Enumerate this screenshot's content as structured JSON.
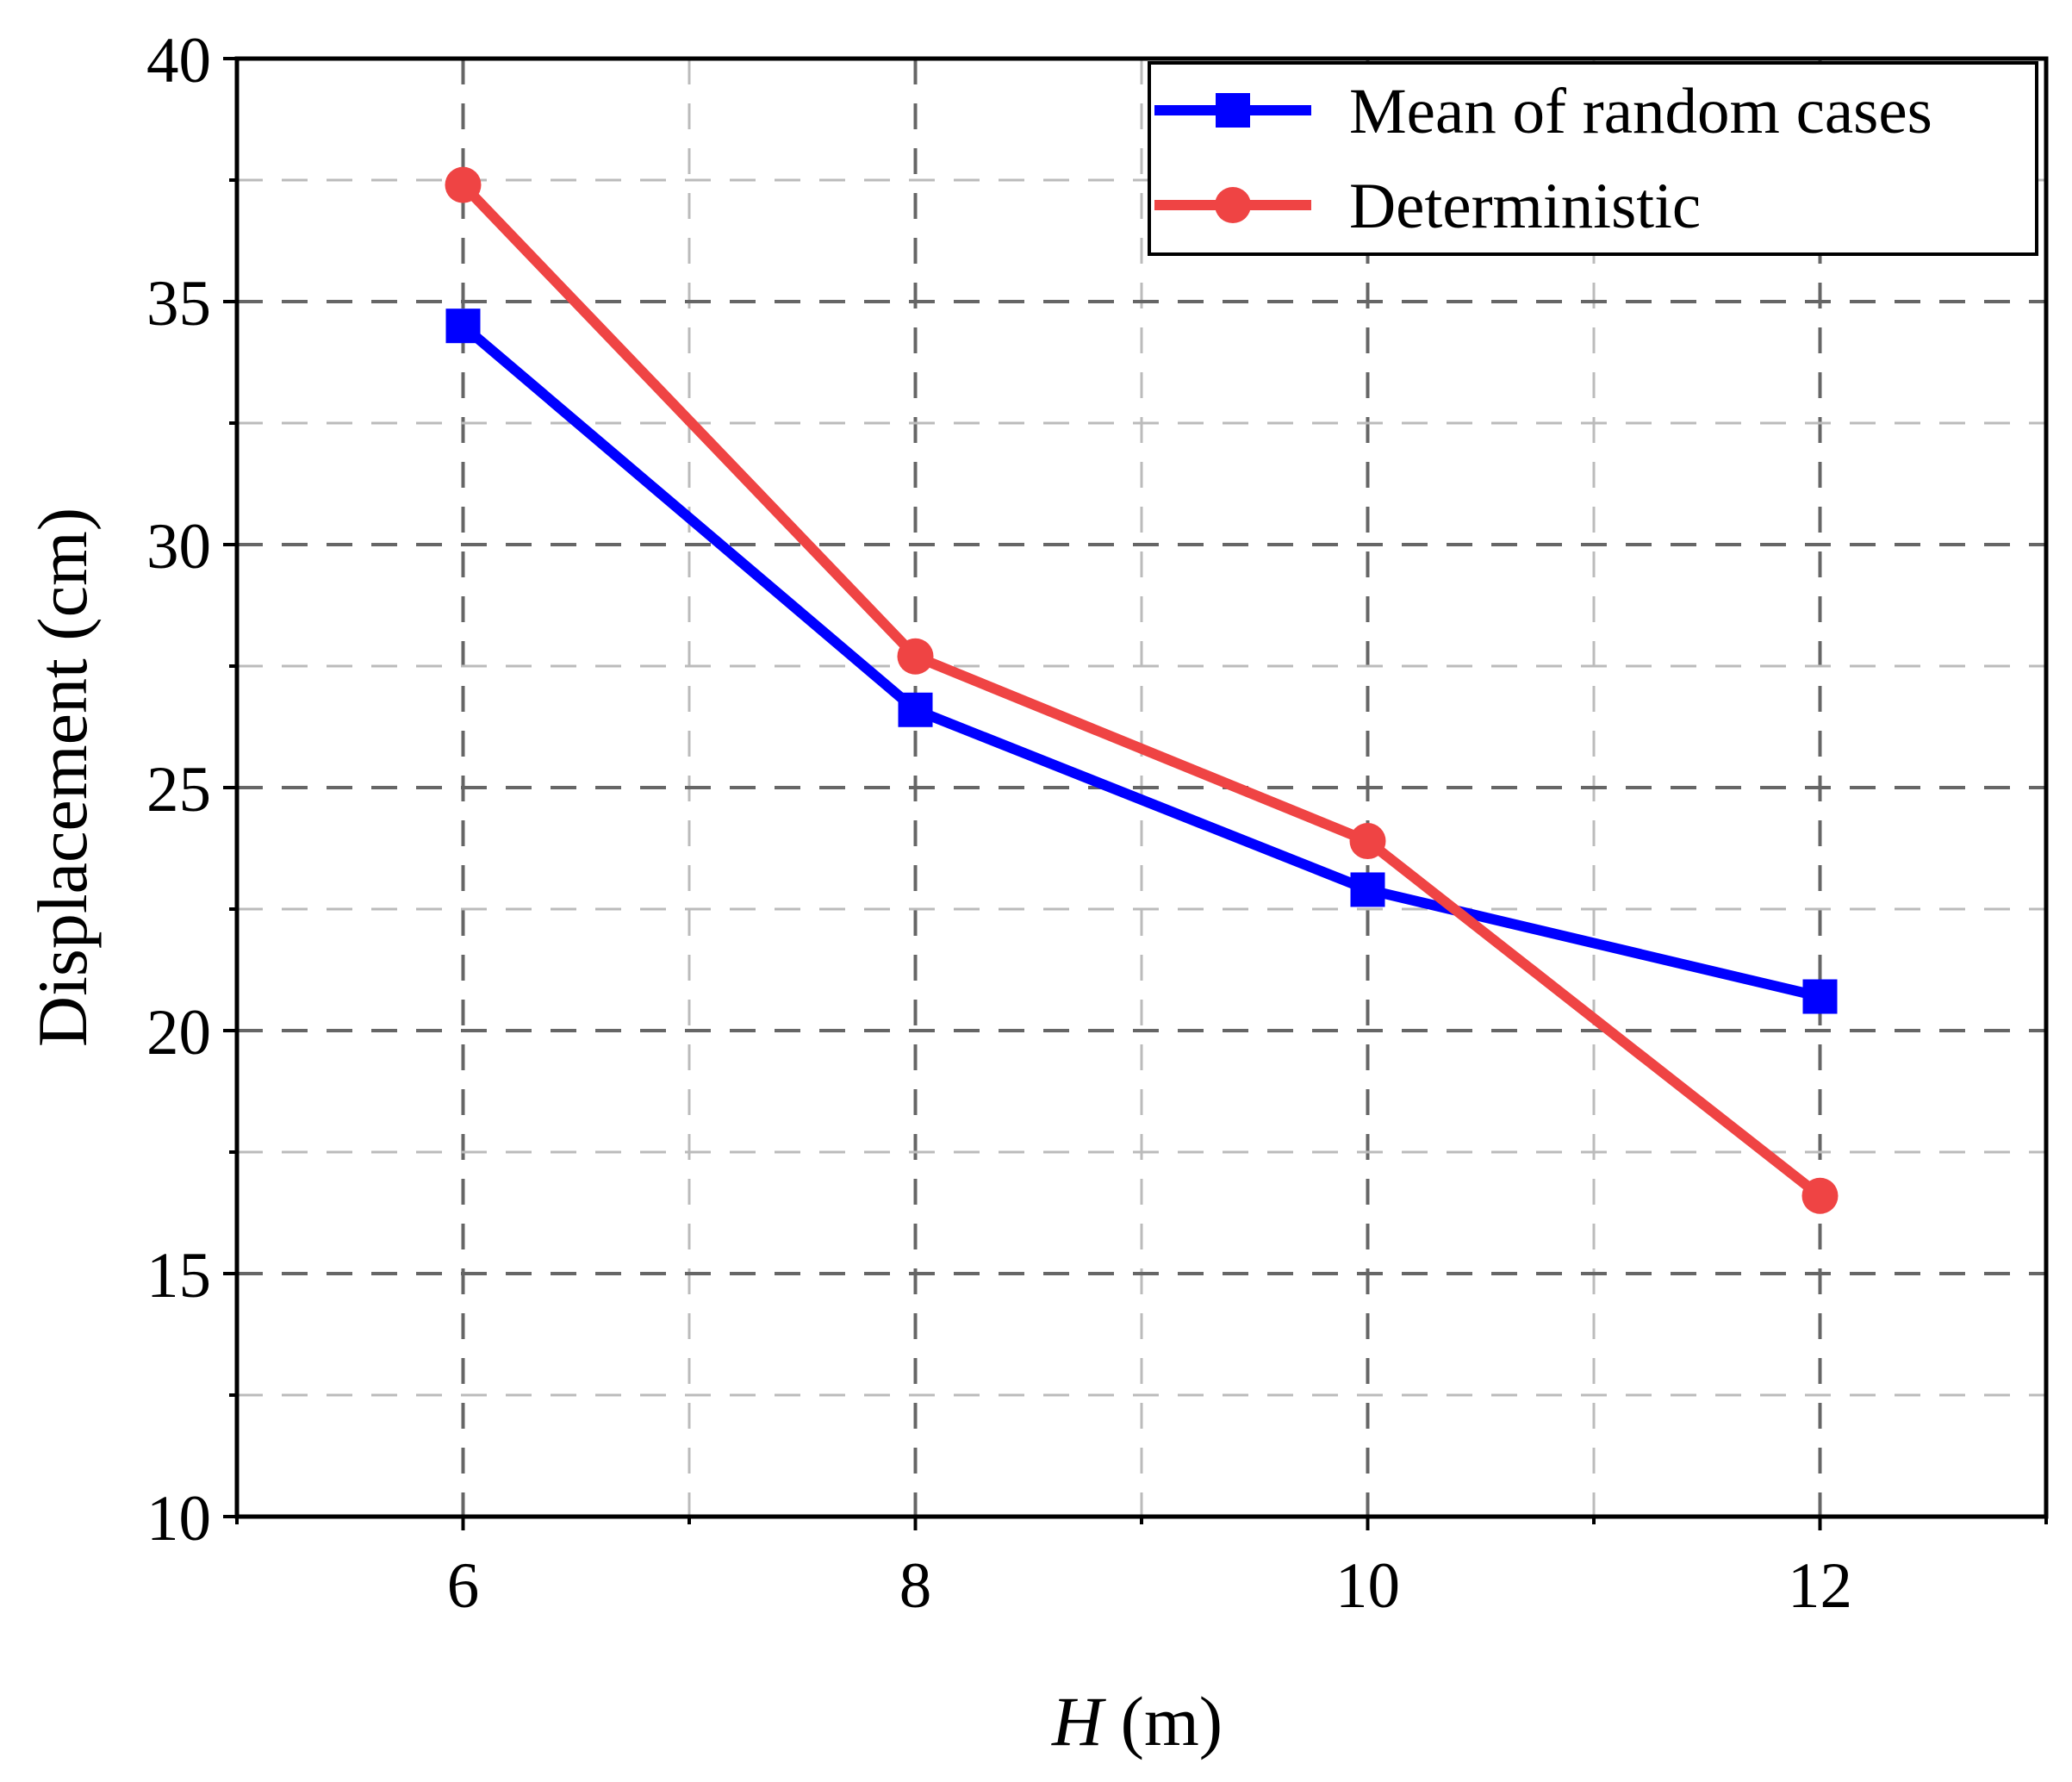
{
  "chart_data": {
    "type": "line",
    "title": "",
    "xlabel": {
      "var": "H",
      "unit": " (m)"
    },
    "ylabel": "Displacement (cm)",
    "xlim": [
      5,
      13
    ],
    "ylim": [
      10,
      40
    ],
    "xticks": [
      6,
      8,
      10,
      12
    ],
    "yticks": [
      10,
      15,
      20,
      25,
      30,
      35,
      40
    ],
    "x": [
      6,
      8,
      10,
      12
    ],
    "grid": true,
    "legend_position": "top-right",
    "series": [
      {
        "name": "Mean of random cases",
        "color": "#0000ff",
        "marker": "square",
        "values": [
          34.5,
          26.6,
          22.9,
          20.7
        ]
      },
      {
        "name": "Deterministic",
        "color": "#ef4444",
        "marker": "circle",
        "values": [
          37.4,
          27.7,
          23.9,
          16.6
        ]
      }
    ]
  }
}
